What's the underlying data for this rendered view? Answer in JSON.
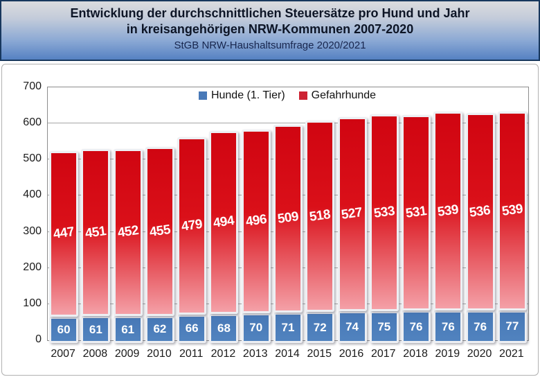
{
  "title": {
    "line1": "Entwicklung der durchschnittlichen Steuersätze pro Hund und Jahr",
    "line2": "in kreisangehörigen NRW-Kommunen 2007-2020",
    "subtitle": "StGB NRW-Haushaltsumfrage 2020/2021"
  },
  "legend": {
    "items": [
      {
        "label": "Hunde (1. Tier)",
        "swatch": "#4879b8"
      },
      {
        "label": "Gefahrhunde",
        "swatch": "#cd2232"
      }
    ]
  },
  "chart_data": {
    "type": "bar",
    "stacked": true,
    "title": "Entwicklung der durchschnittlichen Steuersätze pro Hund und Jahr in kreisangehörigen NRW-Kommunen 2007-2020",
    "subtitle": "StGB NRW-Haushaltsumfrage 2020/2021",
    "categories": [
      "2007",
      "2008",
      "2009",
      "2010",
      "2011",
      "2012",
      "2013",
      "2014",
      "2015",
      "2016",
      "2017",
      "2018",
      "2019",
      "2020",
      "2021"
    ],
    "series": [
      {
        "name": "Hunde (1. Tier)",
        "values": [
          60,
          61,
          61,
          62,
          66,
          68,
          70,
          71,
          72,
          74,
          75,
          76,
          76,
          76,
          77
        ],
        "gradient": [
          "#4778b6",
          "#5183bf"
        ]
      },
      {
        "name": "Gefahrhunde",
        "values": [
          447,
          451,
          452,
          455,
          479,
          494,
          496,
          509,
          518,
          527,
          533,
          531,
          539,
          536,
          539
        ],
        "gradient": [
          "#d00511",
          "#da1019",
          "#f4a0a7"
        ]
      }
    ],
    "ylim": [
      0,
      700
    ],
    "yticks": [
      0,
      100,
      200,
      300,
      400,
      500,
      600,
      700
    ],
    "grid": true,
    "legend_position": "top-center",
    "data_labels": true
  },
  "colors": {
    "title_border": "#17375d",
    "plot_border": "#8c8c8c",
    "gridline": "#a6a6a6",
    "bar_frame": "#edeff3"
  }
}
